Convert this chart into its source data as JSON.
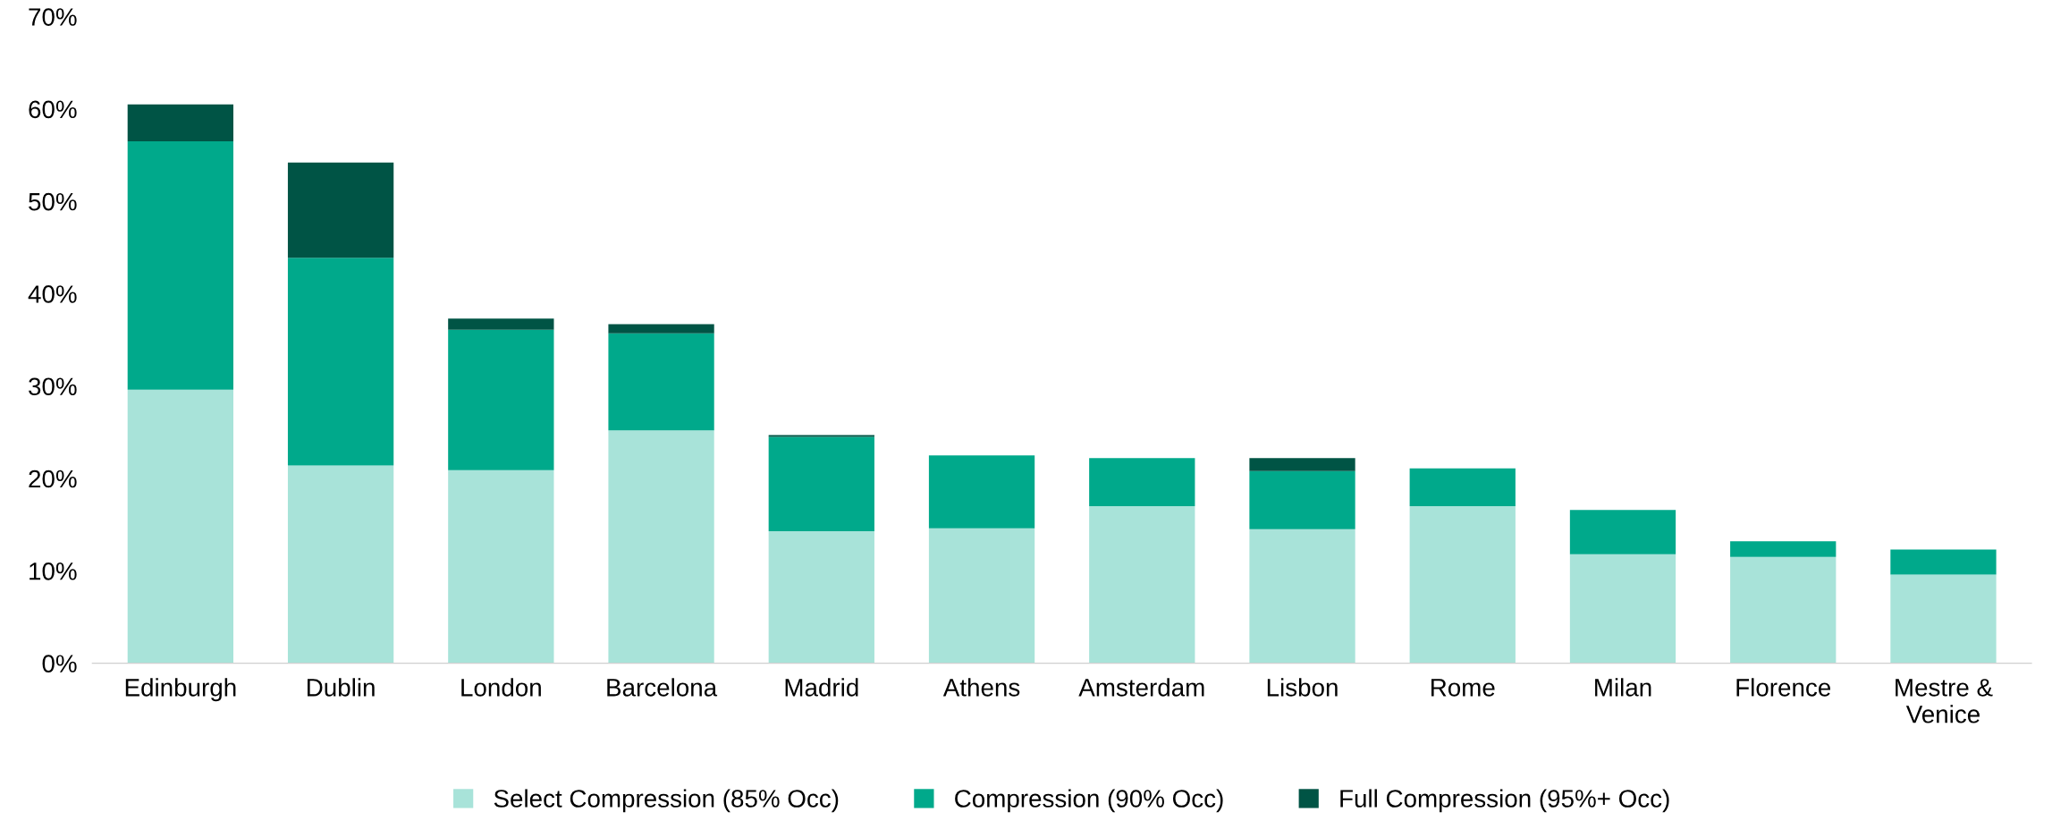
{
  "chart_data": {
    "type": "bar",
    "stacked": true,
    "categories": [
      "Edinburgh",
      "Dublin",
      "London",
      "Barcelona",
      "Madrid",
      "Athens",
      "Amsterdam",
      "Lisbon",
      "Rome",
      "Milan",
      "Florence",
      "Mestre &\nVenice"
    ],
    "series": [
      {
        "name": "Select Compression (85% Occ)",
        "color": "#a8e3d9",
        "values": [
          29.6,
          21.4,
          20.9,
          25.2,
          14.3,
          14.6,
          17.0,
          14.5,
          17.0,
          11.8,
          11.5,
          9.6
        ]
      },
      {
        "name": "Compression (90% Occ)",
        "color": "#00a98b",
        "values": [
          26.9,
          22.5,
          15.2,
          10.5,
          10.2,
          7.9,
          5.2,
          6.3,
          4.1,
          4.8,
          1.7,
          2.7
        ]
      },
      {
        "name": "Full Compression (95%+ Occ)",
        "color": "#005445",
        "values": [
          4.0,
          10.3,
          1.2,
          1.0,
          0.2,
          0,
          0,
          1.4,
          0,
          0,
          0,
          0
        ]
      }
    ],
    "ylim": [
      0,
      70
    ],
    "yticks": [
      {
        "value": 0,
        "label": "0%"
      },
      {
        "value": 10,
        "label": "10%"
      },
      {
        "value": 20,
        "label": "20%"
      },
      {
        "value": 30,
        "label": "30%"
      },
      {
        "value": 40,
        "label": "40%"
      },
      {
        "value": 50,
        "label": "50%"
      },
      {
        "value": 60,
        "label": "60%"
      },
      {
        "value": 70,
        "label": "70%"
      }
    ],
    "grid": false,
    "legend": "bottom"
  }
}
